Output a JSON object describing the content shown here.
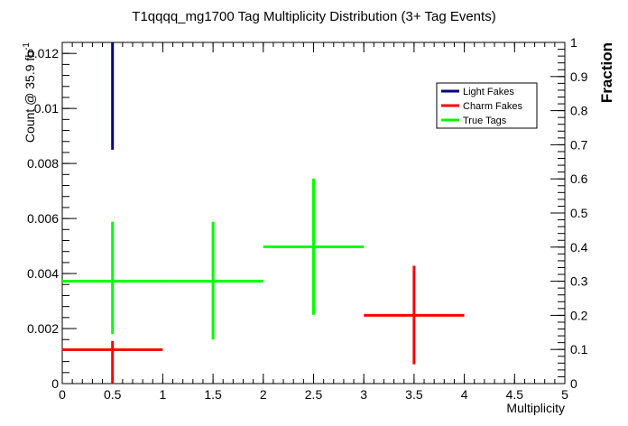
{
  "chart_data": {
    "type": "scatter",
    "title": "T1qqqq_mg1700 Tag Multiplicity Distribution (3+ Tag Events)",
    "xlabel": "Multiplicity",
    "ylabel": "Count @ 35.9 fb",
    "ylabel_sup": "-1",
    "y2label": "Fraction",
    "xlim": [
      0,
      5
    ],
    "ylim": [
      0,
      0.0124
    ],
    "y2lim": [
      0,
      1
    ],
    "x_ticks": [
      0,
      0.5,
      1,
      1.5,
      2,
      2.5,
      3,
      3.5,
      4,
      4.5,
      5
    ],
    "x_tick_labels": [
      "0",
      "0.5",
      "1",
      "1.5",
      "2",
      "2.5",
      "3",
      "3.5",
      "4",
      "4.5",
      "5"
    ],
    "y_ticks": [
      0,
      0.002,
      0.004,
      0.006,
      0.008,
      0.01,
      0.012
    ],
    "y_tick_labels": [
      "0",
      "0.002",
      "0.004",
      "0.006",
      "0.008",
      "0.01",
      "0.012"
    ],
    "y2_ticks": [
      0,
      0.1,
      0.2,
      0.3,
      0.4,
      0.5,
      0.6,
      0.7,
      0.8,
      0.9,
      1
    ],
    "y2_tick_labels": [
      "0",
      "0.1",
      "0.2",
      "0.3",
      "0.4",
      "0.5",
      "0.6",
      "0.7",
      "0.8",
      "0.9",
      "1"
    ],
    "grid": false,
    "legend_position": "top-right",
    "series": [
      {
        "name": "Light Fakes",
        "color": "#00007f",
        "points": [
          {
            "x": 0.5,
            "xerr": 0,
            "y": 0.0124,
            "ylo": 0.0085,
            "yhi": 0.0124
          }
        ]
      },
      {
        "name": "Charm Fakes",
        "color": "#ff0000",
        "points": [
          {
            "x": 0.5,
            "xerr": 0.5,
            "y": 0.00123,
            "ylo": 0.0,
            "yhi": 0.00155
          },
          {
            "x": 3.5,
            "xerr": 0.5,
            "y": 0.00248,
            "ylo": 0.0007,
            "yhi": 0.00428
          }
        ]
      },
      {
        "name": "True Tags",
        "color": "#00ff00",
        "points": [
          {
            "x": 0.5,
            "xerr": 0.5,
            "y": 0.00372,
            "ylo": 0.0018,
            "yhi": 0.00588
          },
          {
            "x": 1.5,
            "xerr": 0.5,
            "y": 0.00372,
            "ylo": 0.0016,
            "yhi": 0.00588
          },
          {
            "x": 2.5,
            "xerr": 0.5,
            "y": 0.00497,
            "ylo": 0.0025,
            "yhi": 0.00745
          }
        ]
      }
    ]
  }
}
